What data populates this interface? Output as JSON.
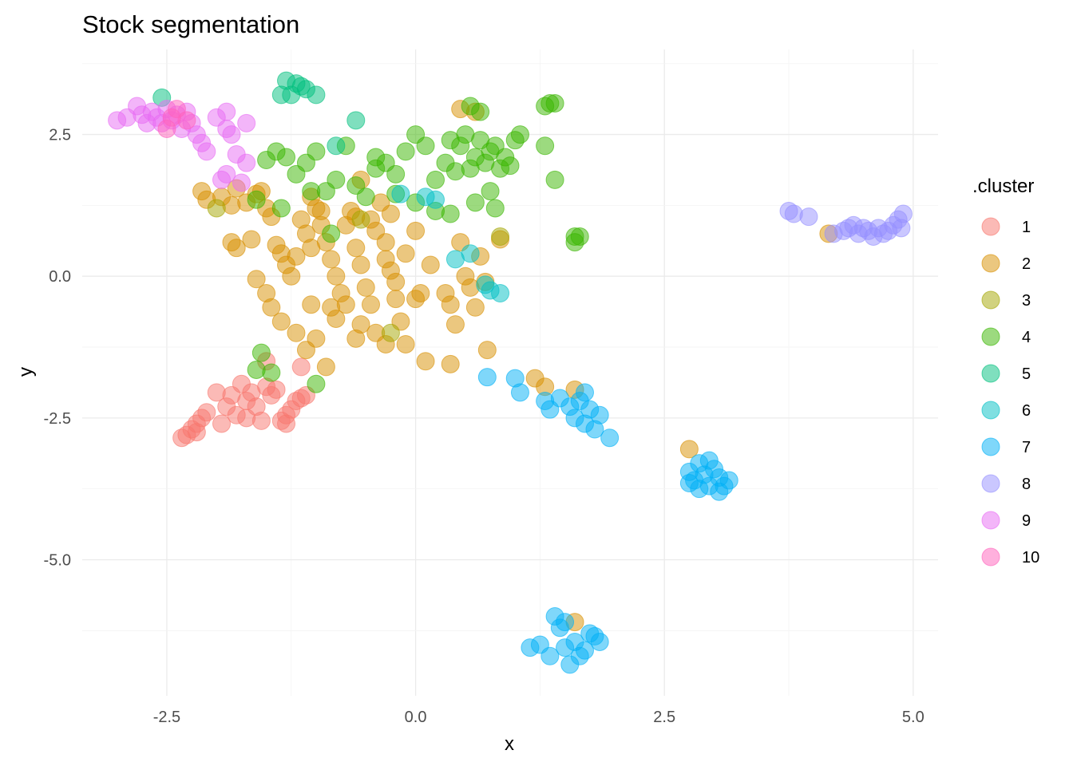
{
  "chart_data": {
    "type": "scatter",
    "title": "Stock segmentation",
    "xlabel": "x",
    "ylabel": "y",
    "xlim": [
      -3.35,
      5.25
    ],
    "ylim": [
      -7.4,
      4.0
    ],
    "x_ticks": [
      -2.5,
      0.0,
      2.5,
      5.0
    ],
    "x_tick_labels": [
      "-2.5",
      "0.0",
      "2.5",
      "5.0"
    ],
    "y_ticks": [
      -5.0,
      -2.5,
      0.0,
      2.5
    ],
    "y_tick_labels": [
      "-5.0",
      "-2.5",
      "0.0",
      "2.5"
    ],
    "grid": true,
    "legend": {
      "title": ".cluster",
      "position": "right"
    },
    "colors": {
      "1": "#F8766D",
      "2": "#D89000",
      "3": "#A3A500",
      "4": "#39B600",
      "5": "#00BF7D",
      "6": "#00BFC4",
      "7": "#00B0F6",
      "8": "#9590FF",
      "9": "#E76BF3",
      "10": "#FF62BC"
    },
    "series": [
      {
        "name": "1",
        "points": [
          [
            -2.35,
            -2.85
          ],
          [
            -2.3,
            -2.8
          ],
          [
            -2.25,
            -2.7
          ],
          [
            -2.2,
            -2.75
          ],
          [
            -2.2,
            -2.6
          ],
          [
            -2.15,
            -2.5
          ],
          [
            -2.1,
            -2.4
          ],
          [
            -2.0,
            -2.05
          ],
          [
            -1.95,
            -2.6
          ],
          [
            -1.9,
            -2.3
          ],
          [
            -1.85,
            -2.1
          ],
          [
            -1.8,
            -2.45
          ],
          [
            -1.75,
            -1.9
          ],
          [
            -1.7,
            -2.2
          ],
          [
            -1.7,
            -2.5
          ],
          [
            -1.65,
            -2.05
          ],
          [
            -1.6,
            -2.3
          ],
          [
            -1.55,
            -2.55
          ],
          [
            -1.5,
            -1.95
          ],
          [
            -1.45,
            -2.1
          ],
          [
            -1.4,
            -2.0
          ],
          [
            -1.35,
            -2.55
          ],
          [
            -1.3,
            -2.45
          ],
          [
            -1.25,
            -2.35
          ],
          [
            -1.2,
            -2.2
          ],
          [
            -1.15,
            -2.15
          ],
          [
            -1.1,
            -2.1
          ],
          [
            -1.15,
            -1.6
          ],
          [
            -1.3,
            -2.6
          ],
          [
            -1.5,
            -1.5
          ]
        ]
      },
      {
        "name": "2",
        "points": [
          [
            -2.15,
            1.5
          ],
          [
            -2.1,
            1.35
          ],
          [
            -1.95,
            1.4
          ],
          [
            -1.85,
            1.25
          ],
          [
            -1.8,
            1.55
          ],
          [
            -1.7,
            1.3
          ],
          [
            -1.6,
            1.45
          ],
          [
            -1.55,
            1.5
          ],
          [
            -1.5,
            1.2
          ],
          [
            -1.45,
            1.05
          ],
          [
            -1.85,
            0.6
          ],
          [
            -1.8,
            0.5
          ],
          [
            -1.65,
            0.65
          ],
          [
            -1.4,
            0.55
          ],
          [
            -1.35,
            0.4
          ],
          [
            -1.3,
            0.2
          ],
          [
            -1.25,
            0.0
          ],
          [
            -1.2,
            0.35
          ],
          [
            -1.15,
            1.0
          ],
          [
            -1.1,
            0.75
          ],
          [
            -1.05,
            0.5
          ],
          [
            -1.0,
            1.2
          ],
          [
            -0.95,
            0.9
          ],
          [
            -0.9,
            0.6
          ],
          [
            -0.85,
            0.3
          ],
          [
            -0.8,
            0.0
          ],
          [
            -0.75,
            -0.3
          ],
          [
            -0.7,
            0.9
          ],
          [
            -0.65,
            1.15
          ],
          [
            -0.6,
            0.5
          ],
          [
            -0.55,
            0.2
          ],
          [
            -0.5,
            -0.2
          ],
          [
            -0.45,
            -0.5
          ],
          [
            -0.4,
            0.8
          ],
          [
            -0.35,
            1.3
          ],
          [
            -0.3,
            0.6
          ],
          [
            -0.25,
            0.1
          ],
          [
            -0.2,
            -0.4
          ],
          [
            -0.15,
            -0.8
          ],
          [
            -0.1,
            -1.2
          ],
          [
            -1.6,
            -0.05
          ],
          [
            -1.45,
            -0.55
          ],
          [
            -1.35,
            -0.8
          ],
          [
            -1.2,
            -1.0
          ],
          [
            -1.1,
            -1.3
          ],
          [
            -1.05,
            -0.5
          ],
          [
            -1.0,
            -1.1
          ],
          [
            -0.9,
            -1.6
          ],
          [
            -0.8,
            -0.75
          ],
          [
            -0.7,
            -0.5
          ],
          [
            -0.6,
            -1.1
          ],
          [
            -0.55,
            -0.85
          ],
          [
            -0.4,
            -1.0
          ],
          [
            -0.3,
            -1.2
          ],
          [
            -0.2,
            -0.1
          ],
          [
            -0.1,
            0.4
          ],
          [
            0.0,
            0.8
          ],
          [
            0.05,
            -0.3
          ],
          [
            0.1,
            -1.5
          ],
          [
            0.15,
            0.2
          ],
          [
            0.3,
            -0.3
          ],
          [
            0.35,
            -0.5
          ],
          [
            0.4,
            -0.85
          ],
          [
            0.45,
            0.6
          ],
          [
            0.5,
            0.0
          ],
          [
            0.55,
            -0.2
          ],
          [
            0.65,
            0.35
          ],
          [
            0.7,
            -0.1
          ],
          [
            0.72,
            -1.3
          ],
          [
            0.35,
            -1.55
          ],
          [
            0.45,
            2.95
          ],
          [
            0.6,
            2.9
          ],
          [
            -0.55,
            1.7
          ],
          [
            -0.6,
            1.05
          ],
          [
            -0.45,
            1.0
          ],
          [
            -0.25,
            1.1
          ],
          [
            -1.05,
            1.4
          ],
          [
            -0.95,
            1.15
          ],
          [
            -0.3,
            0.3
          ],
          [
            0.0,
            -0.4
          ],
          [
            1.2,
            -1.8
          ],
          [
            1.3,
            -1.95
          ],
          [
            1.6,
            -2.0
          ],
          [
            2.75,
            -3.05
          ],
          [
            1.6,
            -6.1
          ],
          [
            4.15,
            0.75
          ],
          [
            0.85,
            0.65
          ],
          [
            0.6,
            -0.55
          ],
          [
            -1.5,
            -0.3
          ],
          [
            -0.85,
            -0.55
          ]
        ]
      },
      {
        "name": "3",
        "points": [
          [
            -2.0,
            1.2
          ],
          [
            -0.55,
            1.0
          ],
          [
            -0.25,
            -1.0
          ],
          [
            0.85,
            0.7
          ]
        ]
      },
      {
        "name": "4",
        "points": [
          [
            -1.5,
            2.05
          ],
          [
            -1.4,
            2.2
          ],
          [
            -1.3,
            2.1
          ],
          [
            -1.2,
            1.8
          ],
          [
            -1.1,
            2.0
          ],
          [
            -1.0,
            2.2
          ],
          [
            -0.9,
            1.5
          ],
          [
            -0.8,
            1.7
          ],
          [
            -0.7,
            2.3
          ],
          [
            -0.6,
            1.6
          ],
          [
            -0.5,
            1.4
          ],
          [
            -0.4,
            1.9
          ],
          [
            -0.3,
            2.0
          ],
          [
            -0.2,
            1.8
          ],
          [
            -0.1,
            2.2
          ],
          [
            0.0,
            2.5
          ],
          [
            0.1,
            2.3
          ],
          [
            0.2,
            1.7
          ],
          [
            0.3,
            2.0
          ],
          [
            0.35,
            2.4
          ],
          [
            0.4,
            1.85
          ],
          [
            0.45,
            2.3
          ],
          [
            0.5,
            2.5
          ],
          [
            0.55,
            1.9
          ],
          [
            0.6,
            2.1
          ],
          [
            0.65,
            2.4
          ],
          [
            0.7,
            2.0
          ],
          [
            0.75,
            2.2
          ],
          [
            0.8,
            2.3
          ],
          [
            0.85,
            1.9
          ],
          [
            0.9,
            2.1
          ],
          [
            1.0,
            2.4
          ],
          [
            1.05,
            2.5
          ],
          [
            0.55,
            3.0
          ],
          [
            0.65,
            2.9
          ],
          [
            1.3,
            3.0
          ],
          [
            1.35,
            3.05
          ],
          [
            1.4,
            3.05
          ],
          [
            1.3,
            2.3
          ],
          [
            1.4,
            1.7
          ],
          [
            1.6,
            0.7
          ],
          [
            1.65,
            0.7
          ],
          [
            1.6,
            0.6
          ],
          [
            0.8,
            1.2
          ],
          [
            0.75,
            1.5
          ],
          [
            0.6,
            1.3
          ],
          [
            0.35,
            1.1
          ],
          [
            0.2,
            1.15
          ],
          [
            0.0,
            1.3
          ],
          [
            -0.2,
            1.45
          ],
          [
            -1.55,
            -1.35
          ],
          [
            -1.6,
            -1.65
          ],
          [
            -1.45,
            -1.7
          ],
          [
            -1.0,
            -1.9
          ],
          [
            -1.6,
            1.35
          ],
          [
            -1.35,
            1.2
          ],
          [
            -1.05,
            1.5
          ],
          [
            -0.85,
            0.75
          ],
          [
            -0.4,
            2.1
          ],
          [
            0.95,
            1.95
          ]
        ]
      },
      {
        "name": "5",
        "points": [
          [
            -2.55,
            3.15
          ],
          [
            -1.3,
            3.45
          ],
          [
            -1.2,
            3.4
          ],
          [
            -1.15,
            3.35
          ],
          [
            -1.1,
            3.3
          ],
          [
            -1.25,
            3.2
          ],
          [
            -1.0,
            3.2
          ],
          [
            -1.35,
            3.2
          ],
          [
            -0.6,
            2.75
          ],
          [
            -0.8,
            2.3
          ]
        ]
      },
      {
        "name": "6",
        "points": [
          [
            -0.15,
            1.45
          ],
          [
            0.1,
            1.4
          ],
          [
            0.2,
            1.35
          ],
          [
            0.4,
            0.3
          ],
          [
            0.55,
            0.4
          ],
          [
            0.7,
            -0.15
          ],
          [
            0.75,
            -0.25
          ],
          [
            0.85,
            -0.3
          ]
        ]
      },
      {
        "name": "7",
        "points": [
          [
            0.72,
            -1.78
          ],
          [
            1.0,
            -1.8
          ],
          [
            1.05,
            -2.05
          ],
          [
            1.3,
            -2.2
          ],
          [
            1.35,
            -2.35
          ],
          [
            1.45,
            -2.15
          ],
          [
            1.55,
            -2.3
          ],
          [
            1.6,
            -2.5
          ],
          [
            1.7,
            -2.05
          ],
          [
            1.75,
            -2.35
          ],
          [
            1.8,
            -2.7
          ],
          [
            1.85,
            -2.45
          ],
          [
            1.95,
            -2.85
          ],
          [
            1.65,
            -2.2
          ],
          [
            1.7,
            -2.6
          ],
          [
            2.75,
            -3.45
          ],
          [
            2.8,
            -3.6
          ],
          [
            2.85,
            -3.3
          ],
          [
            2.9,
            -3.5
          ],
          [
            2.95,
            -3.7
          ],
          [
            3.0,
            -3.4
          ],
          [
            3.05,
            -3.55
          ],
          [
            3.1,
            -3.7
          ],
          [
            2.85,
            -3.75
          ],
          [
            2.95,
            -3.25
          ],
          [
            3.05,
            -3.8
          ],
          [
            2.75,
            -3.65
          ],
          [
            3.15,
            -3.6
          ],
          [
            1.15,
            -6.55
          ],
          [
            1.25,
            -6.5
          ],
          [
            1.35,
            -6.7
          ],
          [
            1.4,
            -6.0
          ],
          [
            1.45,
            -6.2
          ],
          [
            1.5,
            -6.55
          ],
          [
            1.55,
            -6.85
          ],
          [
            1.6,
            -6.45
          ],
          [
            1.65,
            -6.7
          ],
          [
            1.7,
            -6.6
          ],
          [
            1.75,
            -6.3
          ],
          [
            1.8,
            -6.35
          ],
          [
            1.85,
            -6.45
          ],
          [
            1.5,
            -6.1
          ]
        ]
      },
      {
        "name": "8",
        "points": [
          [
            3.75,
            1.15
          ],
          [
            3.8,
            1.1
          ],
          [
            3.95,
            1.05
          ],
          [
            4.2,
            0.75
          ],
          [
            4.3,
            0.8
          ],
          [
            4.4,
            0.9
          ],
          [
            4.45,
            0.75
          ],
          [
            4.5,
            0.85
          ],
          [
            4.55,
            0.8
          ],
          [
            4.6,
            0.7
          ],
          [
            4.65,
            0.85
          ],
          [
            4.7,
            0.75
          ],
          [
            4.75,
            0.8
          ],
          [
            4.8,
            0.9
          ],
          [
            4.85,
            1.0
          ],
          [
            4.88,
            0.85
          ],
          [
            4.9,
            1.1
          ],
          [
            4.35,
            0.85
          ]
        ]
      },
      {
        "name": "9",
        "points": [
          [
            -3.0,
            2.75
          ],
          [
            -2.9,
            2.8
          ],
          [
            -2.8,
            3.0
          ],
          [
            -2.75,
            2.85
          ],
          [
            -2.7,
            2.7
          ],
          [
            -2.65,
            2.9
          ],
          [
            -2.6,
            2.8
          ],
          [
            -2.55,
            2.7
          ],
          [
            -2.5,
            2.95
          ],
          [
            -2.45,
            2.75
          ],
          [
            -2.4,
            2.85
          ],
          [
            -2.35,
            2.6
          ],
          [
            -2.3,
            2.9
          ],
          [
            -2.25,
            2.7
          ],
          [
            -2.2,
            2.5
          ],
          [
            -2.15,
            2.35
          ],
          [
            -2.1,
            2.2
          ],
          [
            -2.0,
            2.8
          ],
          [
            -1.9,
            2.9
          ],
          [
            -1.9,
            2.6
          ],
          [
            -1.85,
            2.5
          ],
          [
            -1.8,
            2.15
          ],
          [
            -1.7,
            2.7
          ],
          [
            -1.7,
            2.0
          ],
          [
            -1.9,
            1.8
          ],
          [
            -1.95,
            1.7
          ],
          [
            -1.75,
            1.65
          ]
        ]
      },
      {
        "name": "10",
        "points": [
          [
            -2.4,
            2.95
          ],
          [
            -2.45,
            2.8
          ],
          [
            -2.5,
            2.6
          ],
          [
            -2.3,
            2.75
          ]
        ]
      }
    ]
  }
}
